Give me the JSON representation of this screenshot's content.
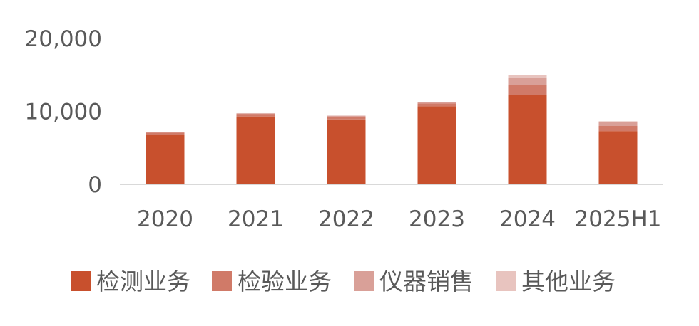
{
  "chart_data": {
    "type": "bar",
    "stacked": true,
    "categories": [
      "2020",
      "2021",
      "2022",
      "2023",
      "2024",
      "2025H1"
    ],
    "series": [
      {
        "name": "检测业务",
        "color": "#C8502D",
        "values": [
          6800,
          9300,
          8900,
          10700,
          12200,
          7300
        ]
      },
      {
        "name": "检验业务",
        "color": "#D07A68",
        "values": [
          300,
          350,
          400,
          400,
          1400,
          700
        ]
      },
      {
        "name": "仪器销售",
        "color": "#D9A098",
        "values": [
          50,
          80,
          100,
          150,
          1000,
          500
        ]
      },
      {
        "name": "其他业务",
        "color": "#E8C4BF",
        "values": [
          20,
          30,
          30,
          40,
          400,
          150
        ]
      }
    ],
    "yticks": [
      0,
      10000,
      20000
    ],
    "ytick_labels": [
      "0",
      "10,000",
      "20,000"
    ],
    "ylim": [
      0,
      20000
    ],
    "grid": false,
    "legend_position": "bottom"
  }
}
